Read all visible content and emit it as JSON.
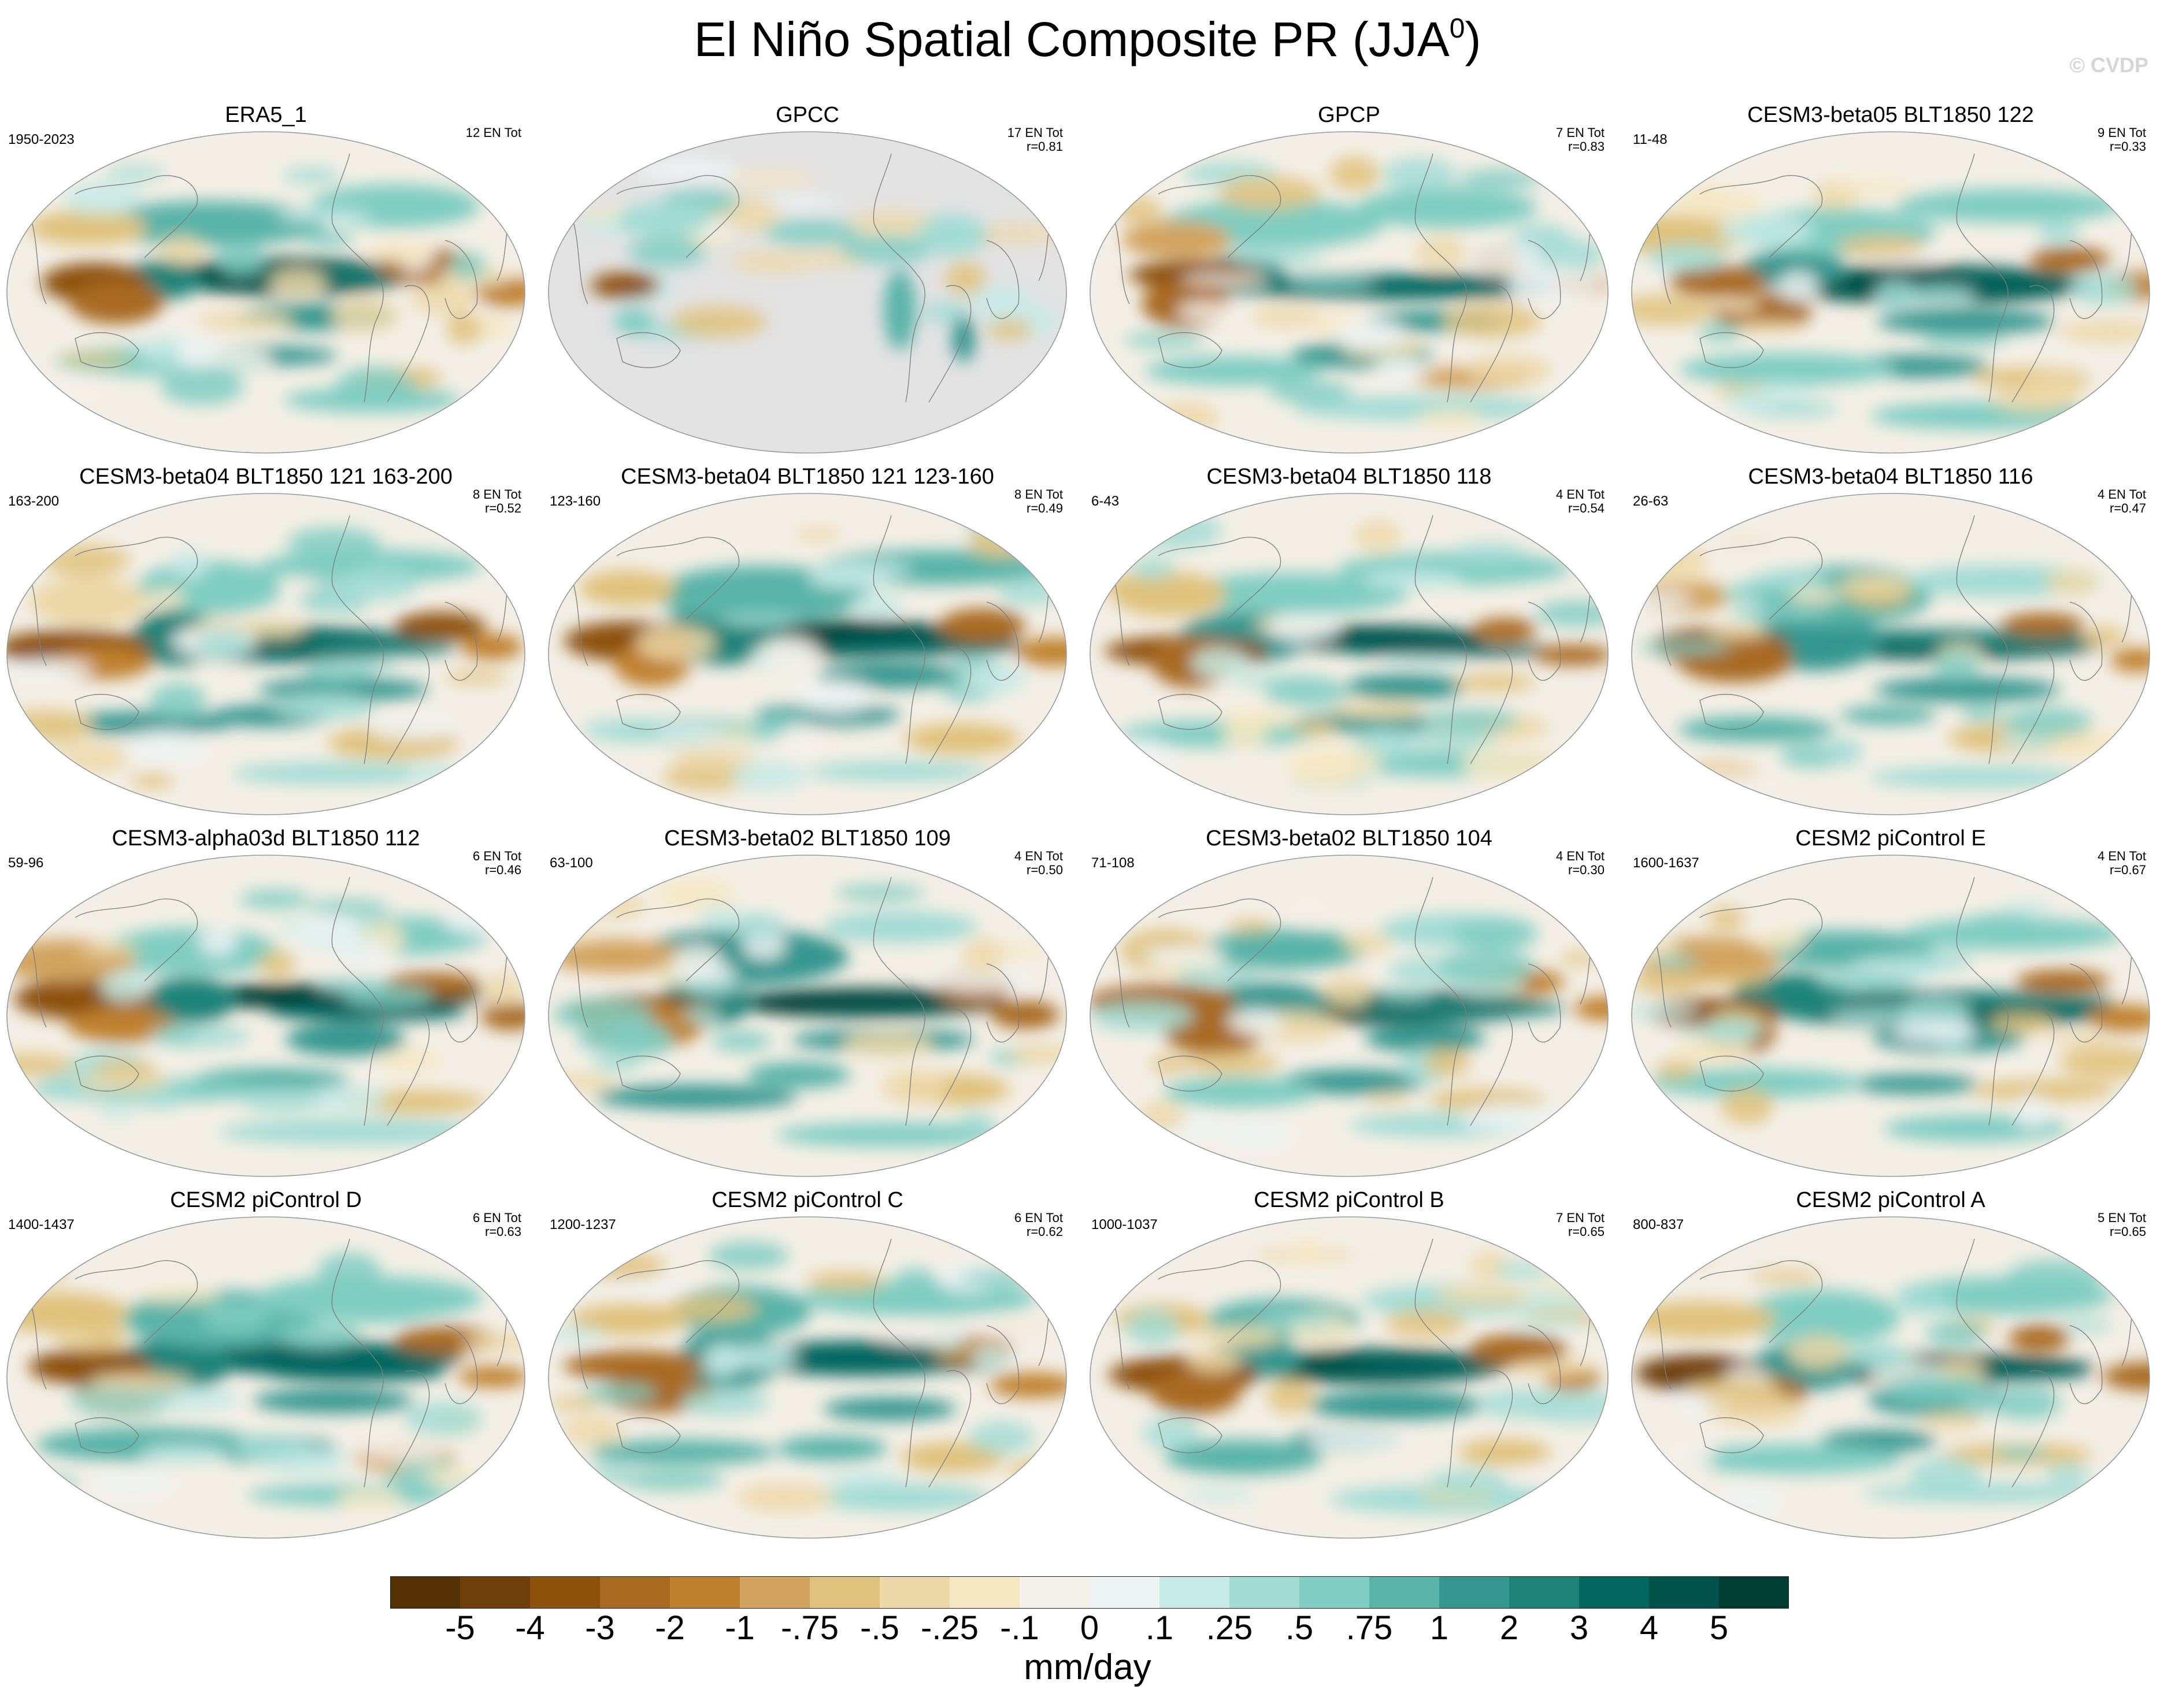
{
  "figure": {
    "title_main": "El Niño Spatial Composite PR (JJA",
    "title_sup": "0",
    "title_close": ")",
    "watermark": "© CVDP",
    "units": "mm/day"
  },
  "panels": [
    {
      "title": "ERA5_1",
      "period": "1950-2023",
      "en": "12 EN Tot",
      "r": "",
      "land_only": false
    },
    {
      "title": "GPCC",
      "period": "",
      "en": "17 EN Tot",
      "r": "r=0.81",
      "land_only": true
    },
    {
      "title": "GPCP",
      "period": "",
      "en": "7 EN Tot",
      "r": "r=0.83",
      "land_only": false
    },
    {
      "title": "CESM3-beta05 BLT1850 122",
      "period": "11-48",
      "en": "9 EN Tot",
      "r": "r=0.33",
      "land_only": false
    },
    {
      "title": "CESM3-beta04 BLT1850 121 163-200",
      "period": "163-200",
      "en": "8 EN Tot",
      "r": "r=0.52",
      "land_only": false
    },
    {
      "title": "CESM3-beta04 BLT1850 121 123-160",
      "period": "123-160",
      "en": "8 EN Tot",
      "r": "r=0.49",
      "land_only": false
    },
    {
      "title": "CESM3-beta04 BLT1850 118",
      "period": "6-43",
      "en": "4 EN Tot",
      "r": "r=0.54",
      "land_only": false
    },
    {
      "title": "CESM3-beta04 BLT1850 116",
      "period": "26-63",
      "en": "4 EN Tot",
      "r": "r=0.47",
      "land_only": false
    },
    {
      "title": "CESM3-alpha03d BLT1850 112",
      "period": "59-96",
      "en": "6 EN Tot",
      "r": "r=0.46",
      "land_only": false
    },
    {
      "title": "CESM3-beta02 BLT1850 109",
      "period": "63-100",
      "en": "4 EN Tot",
      "r": "r=0.50",
      "land_only": false
    },
    {
      "title": "CESM3-beta02 BLT1850 104",
      "period": "71-108",
      "en": "4 EN Tot",
      "r": "r=0.30",
      "land_only": false
    },
    {
      "title": "CESM2 piControl E",
      "period": "1600-1637",
      "en": "4 EN Tot",
      "r": "r=0.67",
      "land_only": false
    },
    {
      "title": "CESM2 piControl D",
      "period": "1400-1437",
      "en": "6 EN Tot",
      "r": "r=0.63",
      "land_only": false
    },
    {
      "title": "CESM2 piControl C",
      "period": "1200-1237",
      "en": "6 EN Tot",
      "r": "r=0.62",
      "land_only": false
    },
    {
      "title": "CESM2 piControl B",
      "period": "1000-1037",
      "en": "7 EN Tot",
      "r": "r=0.65",
      "land_only": false
    },
    {
      "title": "CESM2 piControl A",
      "period": "800-837",
      "en": "5 EN Tot",
      "r": "r=0.65",
      "land_only": false
    }
  ],
  "colorbar": {
    "colors": [
      "#543005",
      "#6e3f0a",
      "#8c510a",
      "#a86a20",
      "#bf812d",
      "#d2a460",
      "#dfc27d",
      "#ecd8a8",
      "#f6e8c3",
      "#f4f0ea",
      "#eef3f3",
      "#c7eae5",
      "#a3dcd3",
      "#80cdc1",
      "#5ab4a8",
      "#35978f",
      "#1d8378",
      "#01665e",
      "#00524a",
      "#003c30"
    ],
    "labels": [
      "-5",
      "-4",
      "-3",
      "-2",
      "-1",
      "-.75",
      "-.5",
      "-.25",
      "-.1",
      "0",
      ".1",
      ".25",
      ".5",
      ".75",
      "1",
      "2",
      "3",
      "4",
      "5"
    ]
  }
}
